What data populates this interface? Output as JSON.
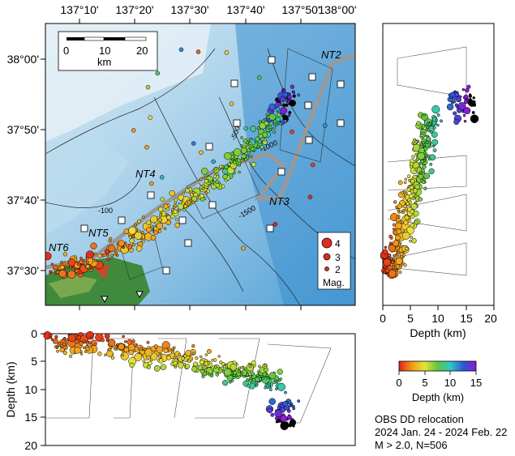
{
  "map": {
    "lon_ticks": [
      "137°10'",
      "137°20'",
      "137°30'",
      "137°40'",
      "137°50'",
      "138°00'"
    ],
    "lat_ticks": [
      "38°00'",
      "37°50'",
      "37°40'",
      "37°30'"
    ],
    "scale": {
      "ticks": [
        "0",
        "10",
        "20"
      ],
      "unit": "km"
    },
    "faults": [
      "NT2",
      "NT3",
      "NT4",
      "NT5",
      "NT6"
    ],
    "contours": [
      "-500",
      "-1000",
      "-1500",
      "-100"
    ],
    "colors": {
      "land": "#3f8a3c",
      "sea_deep": "#5ea8dc",
      "sea_shallow": "#d6e8f2",
      "trace": "#999999"
    }
  },
  "magnitude_legend": {
    "items": [
      {
        "label": "4",
        "mag": 4
      },
      {
        "label": "3",
        "mag": 3
      },
      {
        "label": "2",
        "mag": 2
      }
    ],
    "title": "Mag."
  },
  "profile_right": {
    "xlabel": "Depth (km)",
    "ticks": [
      "0",
      "5",
      "10",
      "15",
      "20"
    ]
  },
  "profile_bottom": {
    "ylabel": "Depth (km)",
    "ticks": [
      "0",
      "5",
      "10",
      "15",
      "20"
    ]
  },
  "colorbar": {
    "ticks": [
      "0",
      "5",
      "10",
      "15"
    ],
    "label": "Depth (km)",
    "colors": [
      "#e0201a",
      "#f39a1a",
      "#e7e33a",
      "#5ec83c",
      "#30c6c6",
      "#2a5ad6",
      "#8a1ad6"
    ]
  },
  "caption": {
    "line1": "OBS DD relocation",
    "line2": "2024 Jan. 24 - 2024 Feb. 22",
    "line3": "M > 2.0, N=506"
  }
}
